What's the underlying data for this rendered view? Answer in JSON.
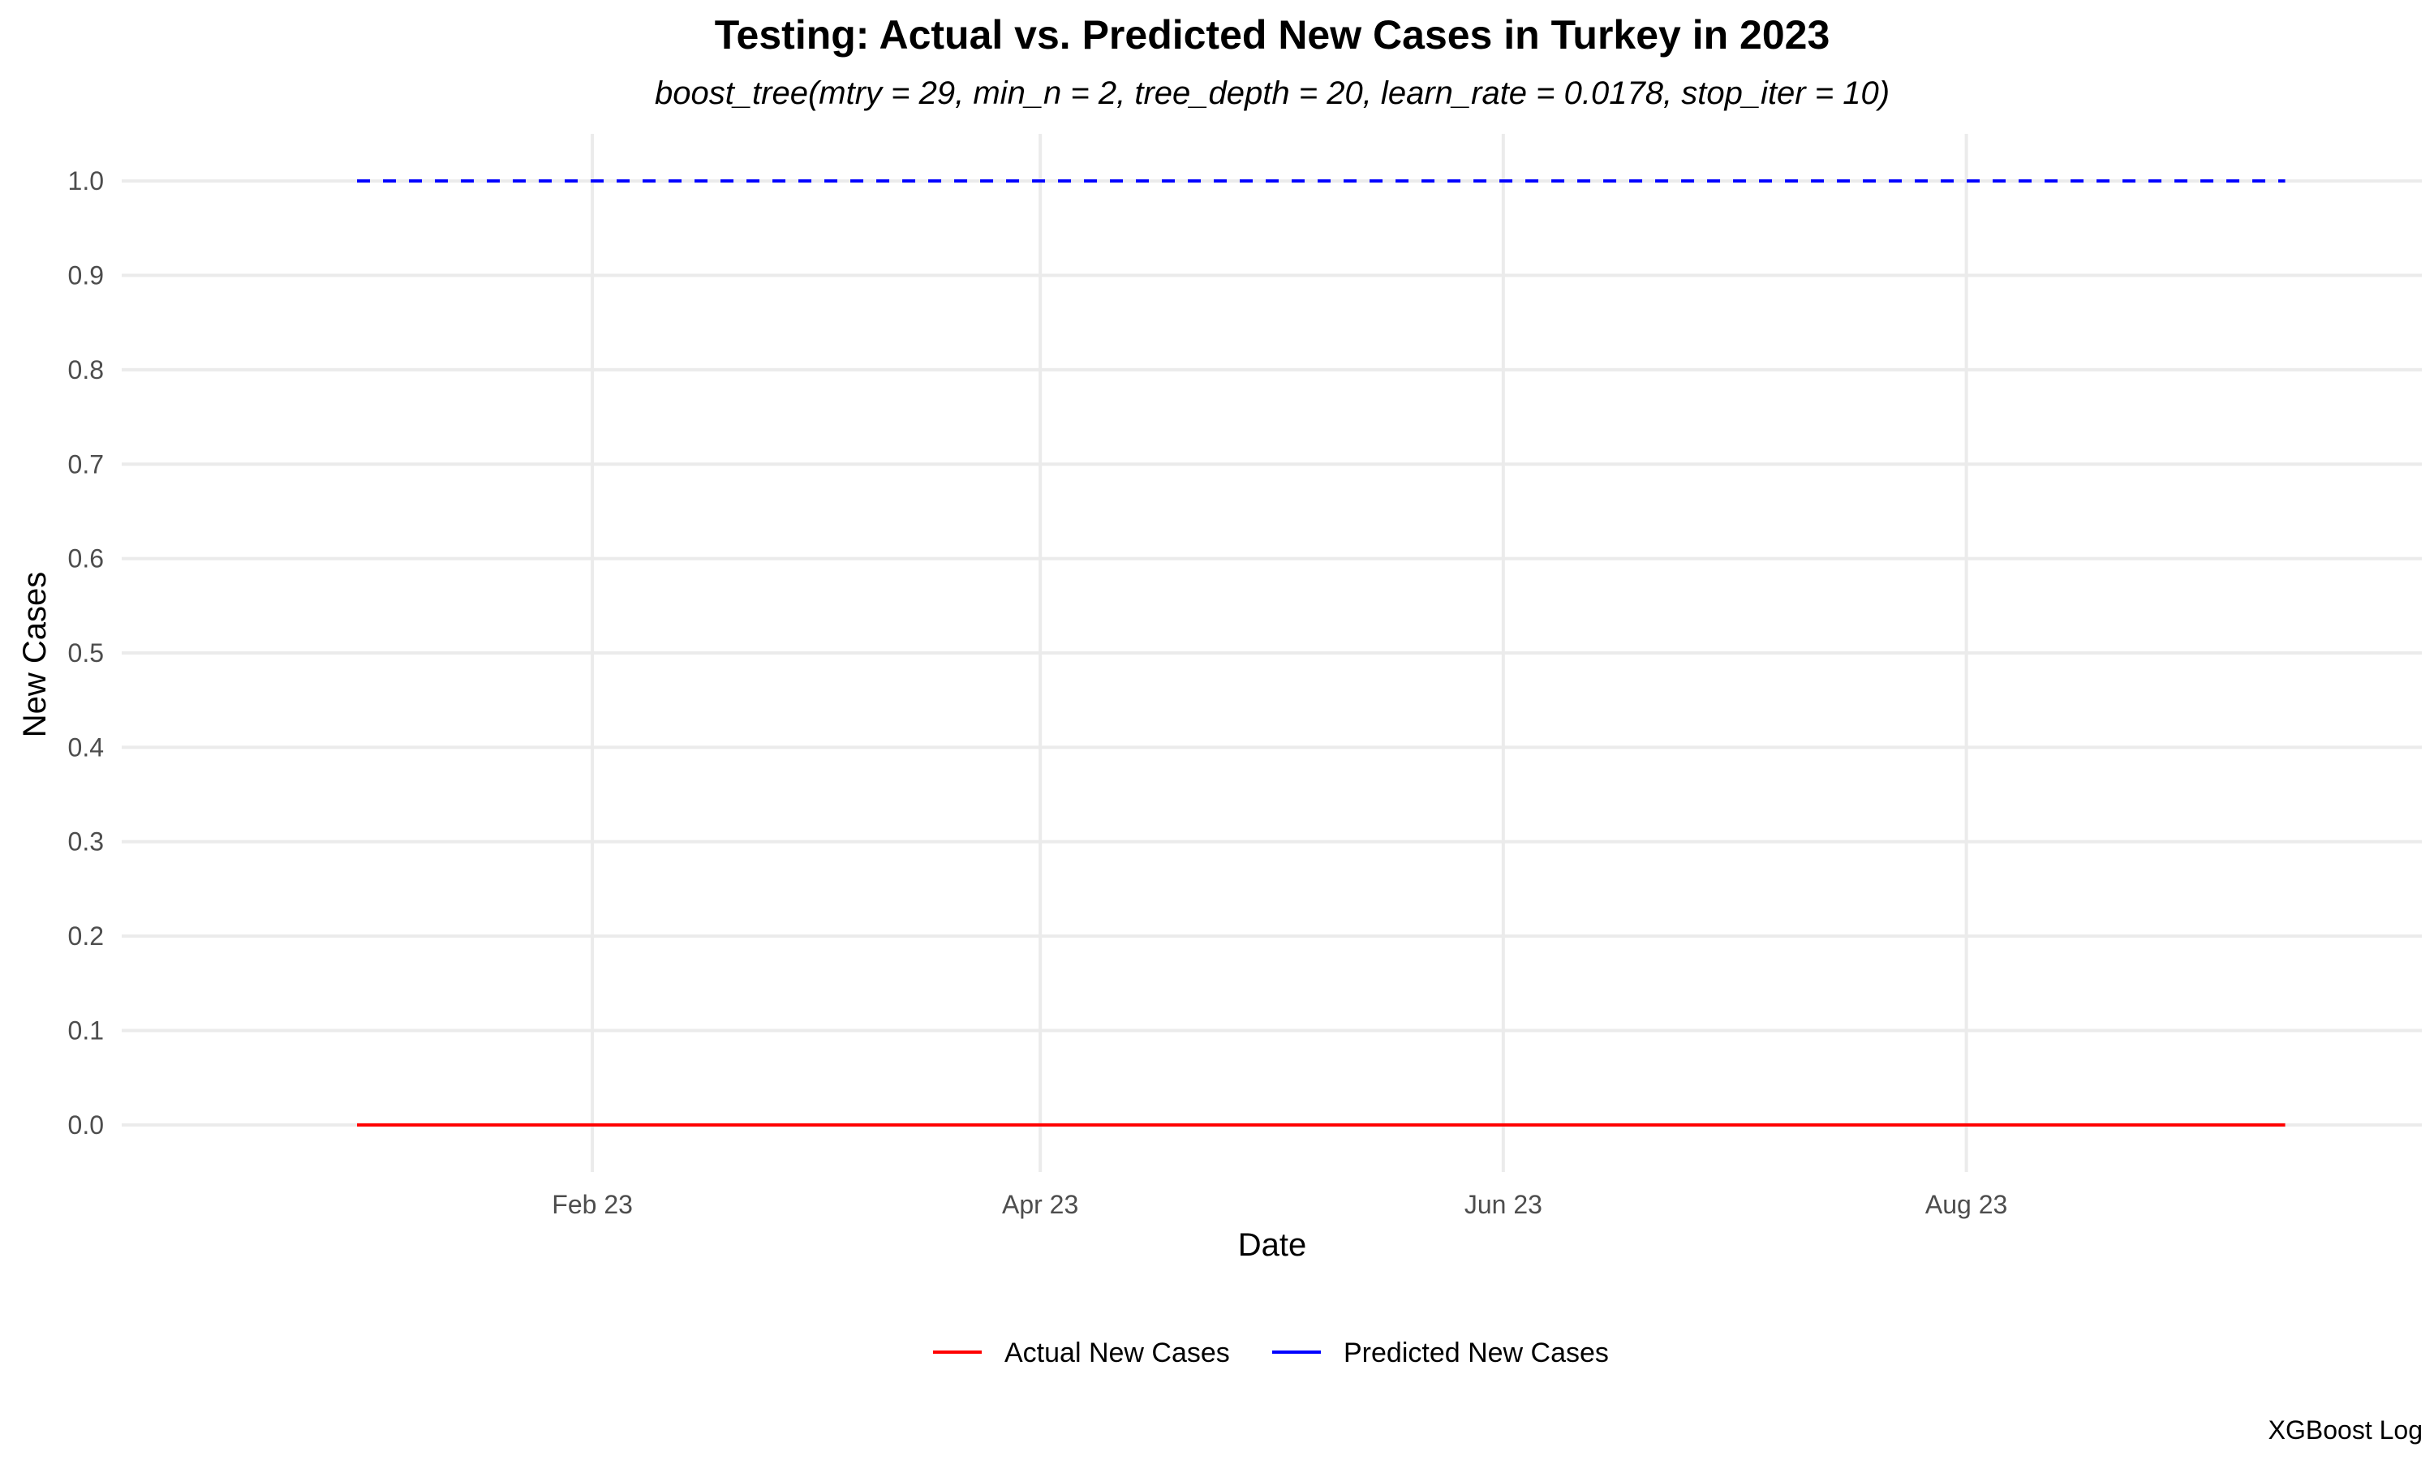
{
  "chart_data": {
    "type": "line",
    "title": "Testing: Actual vs. Predicted New Cases in Turkey in 2023",
    "subtitle": "boost_tree(mtry = 29, min_n = 2, tree_depth = 20, learn_rate = 0.0178, stop_iter = 10)",
    "xlabel": "Date",
    "ylabel": "New Cases",
    "caption": "XGBoost Log",
    "x_ticks": [
      {
        "date": "2023-02-01",
        "label": "Feb 23"
      },
      {
        "date": "2023-04-01",
        "label": "Apr 23"
      },
      {
        "date": "2023-06-01",
        "label": "Jun 23"
      },
      {
        "date": "2023-08-01",
        "label": "Aug 23"
      }
    ],
    "y_ticks": [
      {
        "value": 0.0,
        "label": "0.0"
      },
      {
        "value": 0.1,
        "label": "0.1"
      },
      {
        "value": 0.2,
        "label": "0.2"
      },
      {
        "value": 0.3,
        "label": "0.3"
      },
      {
        "value": 0.4,
        "label": "0.4"
      },
      {
        "value": 0.5,
        "label": "0.5"
      },
      {
        "value": 0.6,
        "label": "0.6"
      },
      {
        "value": 0.7,
        "label": "0.7"
      },
      {
        "value": 0.8,
        "label": "0.8"
      },
      {
        "value": 0.9,
        "label": "0.9"
      },
      {
        "value": 1.0,
        "label": "1.0"
      }
    ],
    "xlim": [
      "2022-12-01",
      "2023-09-30"
    ],
    "ylim": [
      -0.05,
      1.05
    ],
    "grid": true,
    "legend_position": "bottom",
    "series": [
      {
        "name": "Actual New Cases",
        "color": "#ff0000",
        "line_style": "solid",
        "x": [
          "2023-01-01",
          "2023-09-12"
        ],
        "y": [
          0,
          0
        ]
      },
      {
        "name": "Predicted New Cases",
        "color": "#0000ff",
        "line_style": "dashed",
        "x": [
          "2023-01-01",
          "2023-09-12"
        ],
        "y": [
          1,
          1
        ]
      }
    ]
  }
}
